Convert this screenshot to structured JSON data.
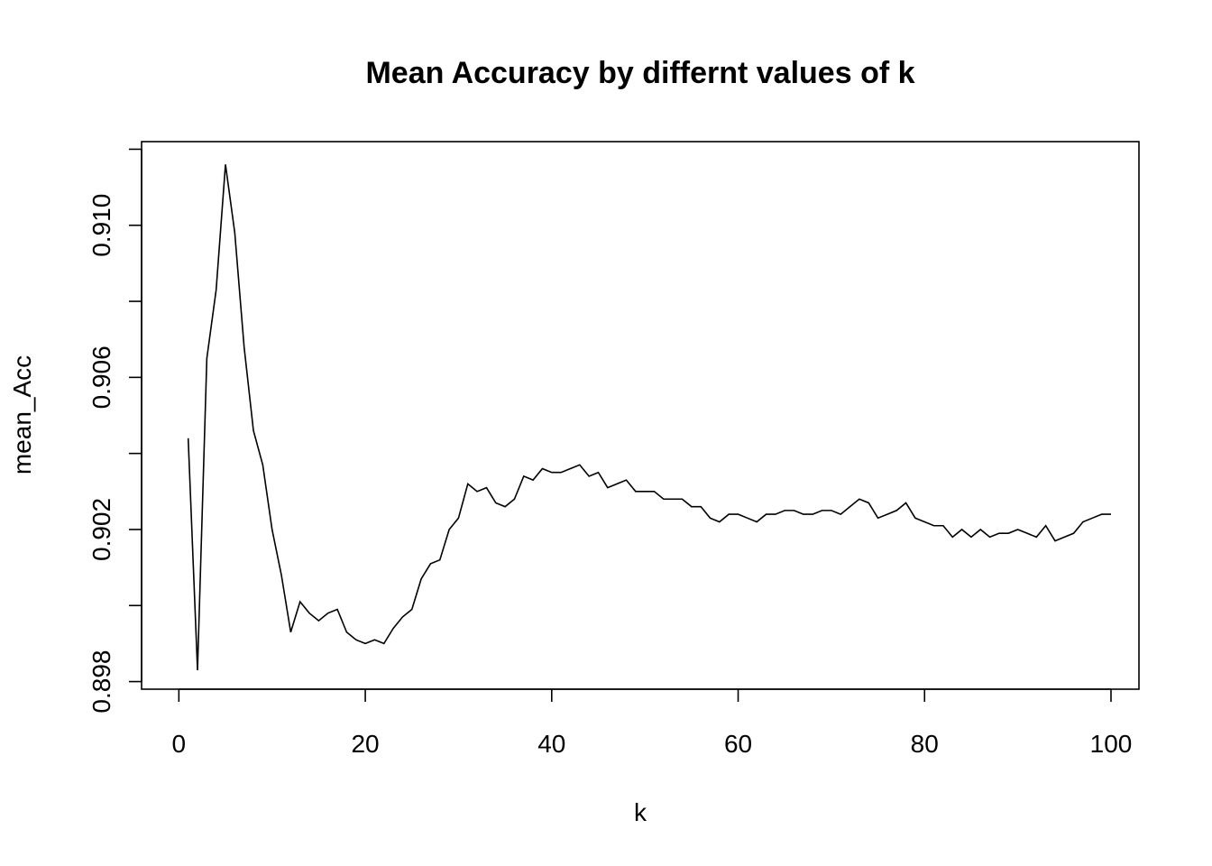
{
  "chart_data": {
    "type": "line",
    "title": "Mean Accuracy by differnt values of k",
    "xlabel": "k",
    "ylabel": "mean_Acc",
    "xlim": [
      -4,
      103
    ],
    "ylim": [
      0.8978,
      0.9122
    ],
    "x_ticks": [
      0,
      20,
      40,
      60,
      80,
      100
    ],
    "x_tick_labels": [
      "0",
      "20",
      "40",
      "60",
      "80",
      "100"
    ],
    "y_ticks": [
      0.898,
      0.9,
      0.902,
      0.904,
      0.906,
      0.908,
      0.91,
      0.912
    ],
    "y_tick_labels": [
      "0.898",
      "",
      "0.902",
      "",
      "0.906",
      "",
      "0.910",
      ""
    ],
    "grid": false,
    "legend": "none",
    "series": [
      {
        "color": "#000000",
        "x": [
          1,
          2,
          3,
          4,
          5,
          6,
          7,
          8,
          9,
          10,
          11,
          12,
          13,
          14,
          15,
          16,
          17,
          18,
          19,
          20,
          21,
          22,
          23,
          24,
          25,
          26,
          27,
          28,
          29,
          30,
          31,
          32,
          33,
          34,
          35,
          36,
          37,
          38,
          39,
          40,
          41,
          42,
          43,
          44,
          45,
          46,
          47,
          48,
          49,
          50,
          51,
          52,
          53,
          54,
          55,
          56,
          57,
          58,
          59,
          60,
          61,
          62,
          63,
          64,
          65,
          66,
          67,
          68,
          69,
          70,
          71,
          72,
          73,
          74,
          75,
          76,
          77,
          78,
          79,
          80,
          81,
          82,
          83,
          84,
          85,
          86,
          87,
          88,
          89,
          90,
          91,
          92,
          93,
          94,
          95,
          96,
          97,
          98,
          99,
          100
        ],
        "y": [
          0.9044,
          0.8983,
          0.9065,
          0.9083,
          0.9116,
          0.9098,
          0.9068,
          0.9046,
          0.9037,
          0.902,
          0.9008,
          0.8993,
          0.9001,
          0.8998,
          0.8996,
          0.8998,
          0.8999,
          0.8993,
          0.8991,
          0.899,
          0.8991,
          0.899,
          0.8994,
          0.8997,
          0.8999,
          0.9007,
          0.9011,
          0.9012,
          0.902,
          0.9023,
          0.9032,
          0.903,
          0.9031,
          0.9027,
          0.9026,
          0.9028,
          0.9034,
          0.9033,
          0.9036,
          0.9035,
          0.9035,
          0.9036,
          0.9037,
          0.9034,
          0.9035,
          0.9031,
          0.9032,
          0.9033,
          0.903,
          0.903,
          0.903,
          0.9028,
          0.9028,
          0.9028,
          0.9026,
          0.9026,
          0.9023,
          0.9022,
          0.9024,
          0.9024,
          0.9023,
          0.9022,
          0.9024,
          0.9024,
          0.9025,
          0.9025,
          0.9024,
          0.9024,
          0.9025,
          0.9025,
          0.9024,
          0.9026,
          0.9028,
          0.9027,
          0.9023,
          0.9024,
          0.9025,
          0.9027,
          0.9023,
          0.9022,
          0.9021,
          0.9021,
          0.9018,
          0.902,
          0.9018,
          0.902,
          0.9018,
          0.9019,
          0.9019,
          0.902,
          0.9019,
          0.9018,
          0.9021,
          0.9017,
          0.9018,
          0.9019,
          0.9022,
          0.9023,
          0.9024,
          0.9024
        ]
      }
    ]
  }
}
